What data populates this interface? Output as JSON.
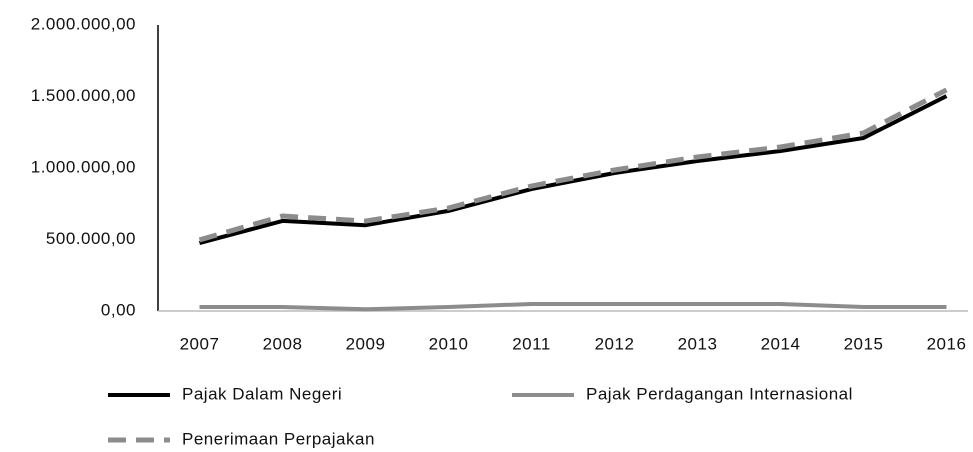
{
  "chart_data": {
    "type": "line",
    "categories": [
      "2007",
      "2008",
      "2009",
      "2010",
      "2011",
      "2012",
      "2013",
      "2014",
      "2015",
      "2016"
    ],
    "series": [
      {
        "name": "Pajak Dalam Negeri",
        "color": "#000000",
        "dash": false,
        "values": [
          475000,
          630000,
          600000,
          700000,
          853000,
          965000,
          1049000,
          1119000,
          1210000,
          1503000
        ]
      },
      {
        "name": "Pajak Perdagangan Internasional",
        "color": "#8c8c8c",
        "dash": false,
        "values": [
          28000,
          28000,
          12000,
          28000,
          49000,
          49000,
          49000,
          49000,
          28000,
          28000
        ]
      },
      {
        "name": "Penerimaan Perpajakan",
        "color": "#8c8c8c",
        "dash": true,
        "values": [
          497000,
          664000,
          629000,
          720000,
          874000,
          986000,
          1077000,
          1147000,
          1245000,
          1546000
        ]
      }
    ],
    "ylim": [
      0,
      2000000
    ],
    "yticks": [
      {
        "value": 0,
        "label": "0,00"
      },
      {
        "value": 500000,
        "label": "500.000,00"
      },
      {
        "value": 1000000,
        "label": "1.000.000,00"
      },
      {
        "value": 1500000,
        "label": "1.500.000,00"
      },
      {
        "value": 2000000,
        "label": "2.000.000,00"
      }
    ],
    "grid": false
  }
}
